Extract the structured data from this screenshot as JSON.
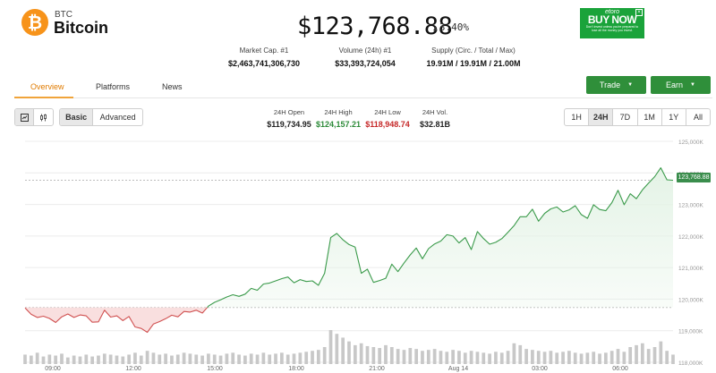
{
  "coin": {
    "symbol": "BTC",
    "name": "Bitcoin",
    "logo_glyph": "₿",
    "logo_color": "#f7931a",
    "price": "$123,768.88",
    "change": "3.40%",
    "change_direction": "up"
  },
  "ad": {
    "brand": "etoro",
    "cta": "BUY NOW",
    "fine_print": "Don't invest unless you're prepared to lose all the money you invest.",
    "close_glyph": "×",
    "bg_color": "#1aa33a"
  },
  "stats": {
    "market_cap": {
      "label": "Market Cap. #1",
      "value": "$2,463,741,306,730"
    },
    "volume": {
      "label": "Volume (24h) #1",
      "value": "$33,393,724,054"
    },
    "supply": {
      "label": "Supply (Circ. / Total / Max)",
      "value": "19.91M / 19.91M / 21.00M"
    }
  },
  "tabs": [
    {
      "label": "Overview",
      "active": true
    },
    {
      "label": "Platforms",
      "active": false
    },
    {
      "label": "News",
      "active": false
    }
  ],
  "buttons": {
    "trade": "Trade",
    "earn": "Earn",
    "caret": "▼"
  },
  "toolbar": {
    "chart_type_icons": [
      "candlestick-icon",
      "line-chart-icon"
    ],
    "modes": [
      "Basic",
      "Advanced"
    ],
    "active_mode": "Basic",
    "ranges": [
      "1H",
      "24H",
      "7D",
      "1M",
      "1Y",
      "All"
    ],
    "active_range": "24H"
  },
  "ohlc": {
    "open": {
      "label": "24H Open",
      "value": "$119,734.95"
    },
    "high": {
      "label": "24H High",
      "value": "$124,157.21",
      "color": "#2e8b3a"
    },
    "low": {
      "label": "24H Low",
      "value": "$118,948.74",
      "color": "#c62828"
    },
    "vol": {
      "label": "24H Vol.",
      "value": "$32.81B"
    }
  },
  "colors": {
    "up_line": "#3a9a4a",
    "up_fill": "#e4f3e6",
    "down_line": "#d05050",
    "down_fill": "#f8d9d9",
    "volume_bar": "#c8c8c8"
  },
  "chart_data": {
    "type": "area",
    "baseline": 119734.95,
    "last_price_label": "123,768.88",
    "y_ticks": [
      "125,000K",
      "124,000K",
      "123,000K",
      "122,000K",
      "121,000K",
      "120,000K",
      "119,000K",
      "118,000K"
    ],
    "x_ticks": [
      "09:00",
      "12:00",
      "15:00",
      "18:00",
      "21:00",
      "Aug 14",
      "03:00",
      "06:00"
    ],
    "series": [
      {
        "values": [
          119720,
          119520,
          119420,
          119460,
          119390,
          119260,
          119440,
          119530,
          119420,
          119500,
          119470,
          119270,
          119280,
          119650,
          119430,
          119470,
          119320,
          119450,
          119120,
          119070,
          118950,
          119210,
          119290,
          119380,
          119490,
          119440,
          119610,
          119590,
          119650,
          119560,
          119780,
          119900,
          119980,
          120070,
          120140,
          120090,
          120160,
          120340,
          120280,
          120480,
          120510,
          120580,
          120650,
          120700,
          120520,
          120620,
          120560,
          120580,
          120440,
          120820,
          121950,
          122080,
          121880,
          121730,
          121650,
          120820,
          120950,
          120530,
          120590,
          120660,
          121110,
          120870,
          121150,
          121400,
          121620,
          121280,
          121600,
          121750,
          121840,
          122040,
          122000,
          121780,
          121950,
          121570,
          122140,
          121920,
          121740,
          121800,
          121920,
          122120,
          122330,
          122610,
          122610,
          122850,
          122470,
          122720,
          122860,
          122920,
          122760,
          122830,
          122960,
          122680,
          122560,
          122990,
          122840,
          122800,
          123060,
          123450,
          122990,
          123340,
          123180,
          123460,
          123680,
          123880,
          124160,
          123780,
          123768
        ]
      }
    ],
    "volumes": [
      10,
      9,
      12,
      8,
      10,
      9,
      11,
      7,
      9,
      8,
      10,
      8,
      9,
      11,
      10,
      9,
      8,
      10,
      12,
      9,
      14,
      12,
      10,
      11,
      9,
      10,
      12,
      11,
      10,
      9,
      11,
      10,
      9,
      11,
      12,
      10,
      9,
      11,
      10,
      12,
      10,
      11,
      12,
      10,
      11,
      12,
      13,
      14,
      15,
      18,
      36,
      32,
      28,
      24,
      20,
      22,
      19,
      18,
      17,
      20,
      18,
      16,
      15,
      17,
      16,
      14,
      15,
      16,
      14,
      13,
      15,
      14,
      12,
      14,
      13,
      12,
      11,
      13,
      12,
      14,
      22,
      20,
      16,
      15,
      14,
      13,
      14,
      12,
      13,
      14,
      12,
      11,
      12,
      13,
      11,
      12,
      14,
      16,
      13,
      18,
      20,
      22,
      16,
      18,
      24,
      14,
      10
    ]
  }
}
